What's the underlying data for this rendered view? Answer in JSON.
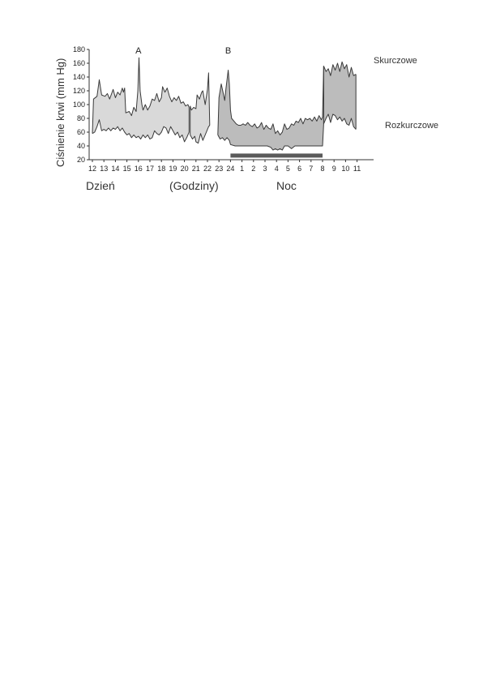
{
  "chart_data": {
    "type": "area",
    "ylabel": "Ciśnienie krwi (mm Hg)",
    "ylim": [
      20,
      180
    ],
    "yticks": [
      20,
      40,
      60,
      80,
      100,
      120,
      140,
      160,
      180
    ],
    "x_tick_labels": [
      "12",
      "13",
      "14",
      "15",
      "16",
      "17",
      "18",
      "19",
      "20",
      "21",
      "22",
      "23",
      "24",
      "1",
      "2",
      "3",
      "4",
      "5",
      "6",
      "7",
      "8",
      "9",
      "10",
      "11"
    ],
    "xlim": [
      12,
      35
    ],
    "grid": false,
    "bottom_labels": {
      "day": "Dzień",
      "hours": "(Godziny)",
      "night": "Noc"
    },
    "series_labels": {
      "systolic": "Skurczowe",
      "diastolic": "Rozkurczowe"
    },
    "annotations": [
      {
        "text": "A",
        "x": 16.0
      },
      {
        "text": "B",
        "x": 23.8
      }
    ],
    "sleep_bar": {
      "x_start": 24.0,
      "x_end": 32.0,
      "y": 26
    },
    "segments": [
      {
        "shade": "light",
        "systolic": [
          [
            12.0,
            58
          ],
          [
            12.1,
            108
          ],
          [
            12.4,
            112
          ],
          [
            12.6,
            136
          ],
          [
            12.8,
            114
          ],
          [
            13.1,
            112
          ],
          [
            13.3,
            116
          ],
          [
            13.5,
            108
          ],
          [
            13.8,
            122
          ],
          [
            14.0,
            110
          ],
          [
            14.2,
            118
          ],
          [
            14.4,
            114
          ],
          [
            14.6,
            124
          ],
          [
            14.7,
            118
          ],
          [
            14.8,
            124
          ],
          [
            14.9,
            88
          ],
          [
            15.2,
            90
          ],
          [
            15.4,
            84
          ],
          [
            15.6,
            96
          ],
          [
            15.8,
            90
          ],
          [
            15.95,
            120
          ],
          [
            16.05,
            168
          ],
          [
            16.15,
            120
          ],
          [
            16.3,
            100
          ],
          [
            16.4,
            92
          ],
          [
            16.6,
            100
          ],
          [
            16.8,
            92
          ],
          [
            17.0,
            98
          ],
          [
            17.2,
            108
          ],
          [
            17.4,
            106
          ],
          [
            17.6,
            116
          ],
          [
            17.8,
            104
          ],
          [
            18.0,
            110
          ],
          [
            18.1,
            126
          ],
          [
            18.3,
            118
          ],
          [
            18.5,
            124
          ],
          [
            18.7,
            112
          ],
          [
            18.9,
            104
          ],
          [
            19.1,
            110
          ],
          [
            19.3,
            106
          ],
          [
            19.5,
            112
          ],
          [
            19.7,
            102
          ],
          [
            19.9,
            104
          ],
          [
            20.1,
            98
          ],
          [
            20.3,
            100
          ],
          [
            20.4,
            96
          ]
        ],
        "diastolic": [
          [
            12.0,
            58
          ],
          [
            12.2,
            60
          ],
          [
            12.4,
            68
          ],
          [
            12.6,
            78
          ],
          [
            12.8,
            62
          ],
          [
            13.0,
            64
          ],
          [
            13.2,
            62
          ],
          [
            13.4,
            66
          ],
          [
            13.6,
            62
          ],
          [
            13.8,
            66
          ],
          [
            14.0,
            64
          ],
          [
            14.2,
            68
          ],
          [
            14.4,
            62
          ],
          [
            14.6,
            66
          ],
          [
            14.8,
            60
          ],
          [
            15.0,
            56
          ],
          [
            15.2,
            58
          ],
          [
            15.4,
            52
          ],
          [
            15.6,
            56
          ],
          [
            15.8,
            52
          ],
          [
            16.0,
            54
          ],
          [
            16.2,
            50
          ],
          [
            16.4,
            56
          ],
          [
            16.6,
            52
          ],
          [
            16.8,
            56
          ],
          [
            17.0,
            50
          ],
          [
            17.2,
            52
          ],
          [
            17.4,
            62
          ],
          [
            17.6,
            58
          ],
          [
            17.8,
            56
          ],
          [
            18.0,
            60
          ],
          [
            18.2,
            68
          ],
          [
            18.4,
            66
          ],
          [
            18.6,
            58
          ],
          [
            18.8,
            68
          ],
          [
            19.0,
            62
          ],
          [
            19.2,
            56
          ],
          [
            19.4,
            60
          ],
          [
            19.6,
            52
          ],
          [
            19.8,
            56
          ],
          [
            20.0,
            46
          ],
          [
            20.2,
            52
          ],
          [
            20.4,
            60
          ]
        ]
      },
      {
        "shade": "light",
        "systolic": [
          [
            20.5,
            98
          ],
          [
            20.6,
            92
          ],
          [
            20.8,
            96
          ],
          [
            21.0,
            94
          ],
          [
            21.1,
            114
          ],
          [
            21.3,
            108
          ],
          [
            21.5,
            118
          ],
          [
            21.6,
            120
          ],
          [
            21.7,
            110
          ],
          [
            21.8,
            100
          ],
          [
            22.0,
            122
          ],
          [
            22.1,
            146
          ],
          [
            22.2,
            70
          ]
        ],
        "diastolic": [
          [
            20.5,
            56
          ],
          [
            20.7,
            50
          ],
          [
            20.9,
            54
          ],
          [
            21.0,
            46
          ],
          [
            21.2,
            44
          ],
          [
            21.4,
            58
          ],
          [
            21.6,
            48
          ],
          [
            21.8,
            56
          ],
          [
            22.0,
            64
          ],
          [
            22.1,
            68
          ],
          [
            22.2,
            70
          ]
        ]
      },
      {
        "shade": "dark",
        "systolic": [
          [
            22.9,
            56
          ],
          [
            23.0,
            110
          ],
          [
            23.2,
            130
          ],
          [
            23.4,
            114
          ],
          [
            23.5,
            106
          ],
          [
            23.6,
            122
          ],
          [
            23.8,
            150
          ],
          [
            23.9,
            130
          ],
          [
            24.0,
            92
          ],
          [
            24.1,
            80
          ],
          [
            24.3,
            76
          ],
          [
            24.5,
            72
          ],
          [
            24.7,
            70
          ],
          [
            24.9,
            70
          ],
          [
            25.1,
            72
          ],
          [
            25.3,
            70
          ],
          [
            25.5,
            74
          ],
          [
            25.7,
            70
          ],
          [
            25.9,
            68
          ],
          [
            26.1,
            72
          ],
          [
            26.3,
            66
          ],
          [
            26.5,
            68
          ],
          [
            26.7,
            74
          ],
          [
            26.9,
            64
          ],
          [
            27.1,
            70
          ],
          [
            27.3,
            66
          ],
          [
            27.5,
            64
          ],
          [
            27.7,
            72
          ],
          [
            27.9,
            58
          ],
          [
            28.1,
            62
          ],
          [
            28.3,
            56
          ],
          [
            28.5,
            60
          ],
          [
            28.7,
            72
          ],
          [
            28.9,
            64
          ],
          [
            29.1,
            66
          ],
          [
            29.3,
            72
          ],
          [
            29.5,
            70
          ],
          [
            29.7,
            76
          ],
          [
            29.9,
            74
          ],
          [
            30.1,
            80
          ],
          [
            30.3,
            72
          ],
          [
            30.5,
            80
          ],
          [
            30.7,
            78
          ],
          [
            30.9,
            80
          ],
          [
            31.1,
            76
          ],
          [
            31.3,
            82
          ],
          [
            31.5,
            76
          ],
          [
            31.7,
            84
          ],
          [
            31.9,
            78
          ],
          [
            32.0,
            82
          ],
          [
            32.1,
            156
          ]
        ],
        "diastolic": [
          [
            22.9,
            56
          ],
          [
            23.1,
            50
          ],
          [
            23.3,
            52
          ],
          [
            23.5,
            48
          ],
          [
            23.7,
            52
          ],
          [
            23.9,
            48
          ],
          [
            24.0,
            42
          ],
          [
            24.4,
            40
          ],
          [
            24.8,
            40
          ],
          [
            25.2,
            40
          ],
          [
            25.6,
            40
          ],
          [
            26.0,
            40
          ],
          [
            26.4,
            40
          ],
          [
            26.8,
            40
          ],
          [
            27.2,
            40
          ],
          [
            27.5,
            38
          ],
          [
            27.7,
            34
          ],
          [
            27.9,
            36
          ],
          [
            28.1,
            34
          ],
          [
            28.3,
            36
          ],
          [
            28.5,
            34
          ],
          [
            28.7,
            40
          ],
          [
            29.0,
            40
          ],
          [
            29.3,
            36
          ],
          [
            29.6,
            40
          ],
          [
            30.0,
            40
          ],
          [
            30.4,
            40
          ],
          [
            30.8,
            40
          ],
          [
            31.2,
            40
          ],
          [
            31.6,
            40
          ],
          [
            32.0,
            40
          ],
          [
            32.1,
            72
          ]
        ]
      },
      {
        "shade": "dark",
        "systolic": [
          [
            32.1,
            156
          ],
          [
            32.3,
            148
          ],
          [
            32.5,
            152
          ],
          [
            32.7,
            142
          ],
          [
            32.9,
            158
          ],
          [
            33.1,
            150
          ],
          [
            33.3,
            160
          ],
          [
            33.5,
            148
          ],
          [
            33.7,
            162
          ],
          [
            33.9,
            152
          ],
          [
            34.1,
            158
          ],
          [
            34.3,
            140
          ],
          [
            34.5,
            154
          ],
          [
            34.7,
            142
          ],
          [
            34.9,
            144
          ]
        ],
        "diastolic": [
          [
            32.1,
            72
          ],
          [
            32.3,
            80
          ],
          [
            32.5,
            86
          ],
          [
            32.7,
            74
          ],
          [
            32.9,
            86
          ],
          [
            33.1,
            84
          ],
          [
            33.3,
            78
          ],
          [
            33.5,
            82
          ],
          [
            33.7,
            76
          ],
          [
            33.9,
            80
          ],
          [
            34.1,
            72
          ],
          [
            34.3,
            70
          ],
          [
            34.5,
            80
          ],
          [
            34.7,
            68
          ],
          [
            34.9,
            64
          ]
        ]
      }
    ]
  },
  "style": {
    "light_fill": "#d9d9d9",
    "dark_fill": "#bcbcbc",
    "line_color": "#3a3a3a",
    "axis_color": "#333333",
    "sleep_bar_color": "#5a5a5a"
  }
}
